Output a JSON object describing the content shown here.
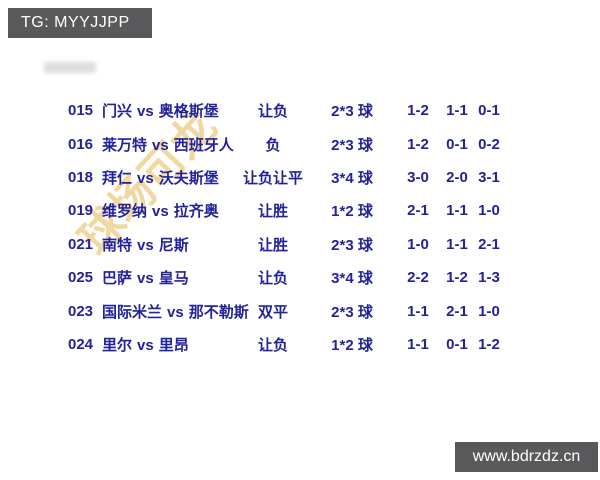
{
  "header": {
    "telegram_badge": "TG: MYYJJPP"
  },
  "watermark": {
    "text": "球场可龙"
  },
  "table": {
    "rows": [
      {
        "num": "015",
        "home": "门兴",
        "vs": "vs",
        "away": "奥格斯堡",
        "bet": "让负",
        "goals": "2*3 球",
        "score1": "1-2",
        "score2": "1-1",
        "score3": "0-1"
      },
      {
        "num": "016",
        "home": "莱万特",
        "vs": "vs",
        "away": "西班牙人",
        "bet": "负",
        "goals": "2*3 球",
        "score1": "1-2",
        "score2": "0-1",
        "score3": "0-2"
      },
      {
        "num": "018",
        "home": "拜仁",
        "vs": "vs",
        "away": "沃夫斯堡",
        "bet": "让负让平",
        "goals": "3*4 球",
        "score1": "3-0",
        "score2": "2-0",
        "score3": "3-1"
      },
      {
        "num": "019",
        "home": "维罗纳",
        "vs": "vs",
        "away": "拉齐奥",
        "bet": "让胜",
        "goals": "1*2 球",
        "score1": "2-1",
        "score2": "1-1",
        "score3": "1-0"
      },
      {
        "num": "021",
        "home": "南特",
        "vs": "vs",
        "away": "尼斯",
        "bet": "让胜",
        "goals": "2*3 球",
        "score1": "1-0",
        "score2": "1-1",
        "score3": "2-1"
      },
      {
        "num": "025",
        "home": "巴萨",
        "vs": "vs",
        "away": "皇马",
        "bet": "让负",
        "goals": "3*4 球",
        "score1": "2-2",
        "score2": "1-2",
        "score3": "1-3"
      },
      {
        "num": "023",
        "home": "国际米兰",
        "vs": "vs",
        "away": "那不勒斯",
        "bet": "双平",
        "goals": "2*3 球",
        "score1": "1-1",
        "score2": "2-1",
        "score3": "1-0"
      },
      {
        "num": "024",
        "home": "里尔",
        "vs": "vs",
        "away": "里昂",
        "bet": "让负",
        "goals": "1*2 球",
        "score1": "1-1",
        "score2": "0-1",
        "score3": "1-2"
      }
    ]
  },
  "footer": {
    "website_badge": "www.bdrzdz.cn"
  },
  "colors": {
    "text_blue": "#22229b",
    "badge_gray": "#59595b",
    "watermark_gold": "#e2ba54"
  }
}
